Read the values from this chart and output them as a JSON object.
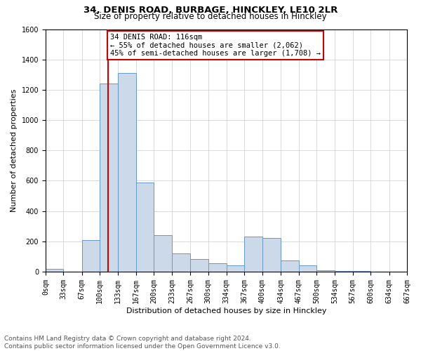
{
  "title1": "34, DENIS ROAD, BURBAGE, HINCKLEY, LE10 2LR",
  "title2": "Size of property relative to detached houses in Hinckley",
  "xlabel": "Distribution of detached houses by size in Hinckley",
  "ylabel": "Number of detached properties",
  "footnote1": "Contains HM Land Registry data © Crown copyright and database right 2024.",
  "footnote2": "Contains public sector information licensed under the Open Government Licence v3.0.",
  "annotation_line1": "34 DENIS ROAD: 116sqm",
  "annotation_line2": "← 55% of detached houses are smaller (2,062)",
  "annotation_line3": "45% of semi-detached houses are larger (1,708) →",
  "property_size": 116,
  "xtick_labels": [
    "0sqm",
    "33sqm",
    "67sqm",
    "100sqm",
    "133sqm",
    "167sqm",
    "200sqm",
    "233sqm",
    "267sqm",
    "300sqm",
    "334sqm",
    "367sqm",
    "400sqm",
    "434sqm",
    "467sqm",
    "500sqm",
    "534sqm",
    "567sqm",
    "600sqm",
    "634sqm",
    "667sqm"
  ],
  "xtick_positions": [
    0,
    33,
    67,
    100,
    133,
    167,
    200,
    233,
    267,
    300,
    334,
    367,
    400,
    434,
    467,
    500,
    534,
    567,
    600,
    634,
    667
  ],
  "bar_lefts": [
    0,
    33,
    67,
    100,
    133,
    167,
    200,
    233,
    267,
    300,
    334,
    367,
    400,
    434,
    467,
    500,
    534,
    567,
    600,
    634
  ],
  "bar_widths": [
    33,
    34,
    33,
    33,
    34,
    33,
    33,
    34,
    33,
    34,
    33,
    33,
    34,
    33,
    33,
    34,
    33,
    33,
    34,
    33
  ],
  "bar_values": [
    20,
    0,
    210,
    1240,
    1310,
    590,
    240,
    120,
    85,
    55,
    40,
    230,
    220,
    75,
    40,
    10,
    5,
    3,
    2,
    1
  ],
  "bar_color": "#ccd9e8",
  "bar_edge_color": "#6699cc",
  "vline_color": "#cc0000",
  "vline_x": 116,
  "ylim": [
    0,
    1600
  ],
  "yticks": [
    0,
    200,
    400,
    600,
    800,
    1000,
    1200,
    1400,
    1600
  ],
  "grid_color": "#cccccc",
  "bg_color": "#ffffff",
  "annotation_box_color": "#cc0000",
  "title1_fontsize": 9.5,
  "title2_fontsize": 8.5,
  "axis_label_fontsize": 8,
  "tick_fontsize": 7,
  "annotation_fontsize": 7.5,
  "footnote_fontsize": 6.5
}
